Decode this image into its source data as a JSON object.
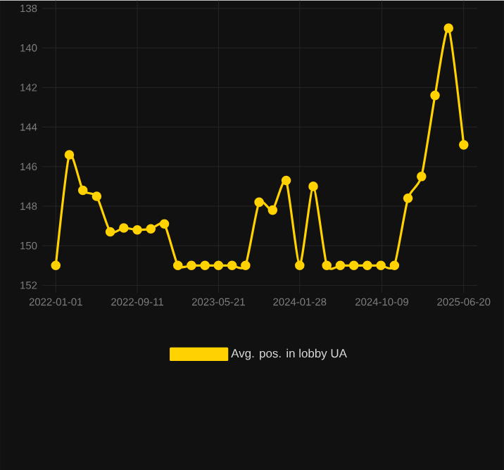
{
  "chart_data": {
    "type": "line",
    "x": [
      "2022-01-01",
      "2022-02-12",
      "2022-03-26",
      "2022-05-08",
      "2022-06-19",
      "2022-07-31",
      "2022-09-11",
      "2022-10-23",
      "2022-12-04",
      "2023-01-15",
      "2023-02-26",
      "2023-04-09",
      "2023-05-21",
      "2023-07-02",
      "2023-08-13",
      "2023-09-24",
      "2023-11-05",
      "2023-12-17",
      "2024-01-28",
      "2024-03-10",
      "2024-04-21",
      "2024-06-02",
      "2024-07-14",
      "2024-08-25",
      "2024-10-06",
      "2024-11-17",
      "2024-12-29",
      "2025-02-09",
      "2025-03-23",
      "2025-05-04",
      "2025-06-20"
    ],
    "series": [
      {
        "name": "Avg. pos. in lobby UA",
        "color": "#ffd200",
        "values": [
          151,
          145.4,
          147.2,
          147.5,
          149.3,
          149.1,
          149.2,
          149.15,
          148.9,
          151,
          151,
          151,
          151,
          151,
          151,
          147.8,
          148.2,
          146.7,
          151,
          147.0,
          151,
          151,
          151,
          151,
          151,
          151,
          147.6,
          146.5,
          142.4,
          139.0,
          144.9
        ]
      }
    ],
    "xlim": [
      "2021-11-20",
      "2025-08-01"
    ],
    "xticks": [
      "2022-01-01",
      "2022-09-11",
      "2023-05-21",
      "2024-01-28",
      "2024-10-09",
      "2025-06-20"
    ],
    "ylim": [
      152.4,
      137.6
    ],
    "yticks": [
      138,
      140,
      142,
      144,
      146,
      148,
      150,
      152
    ],
    "grid": true,
    "legend": "bottom",
    "marker": "circle",
    "line_style": "solid"
  }
}
